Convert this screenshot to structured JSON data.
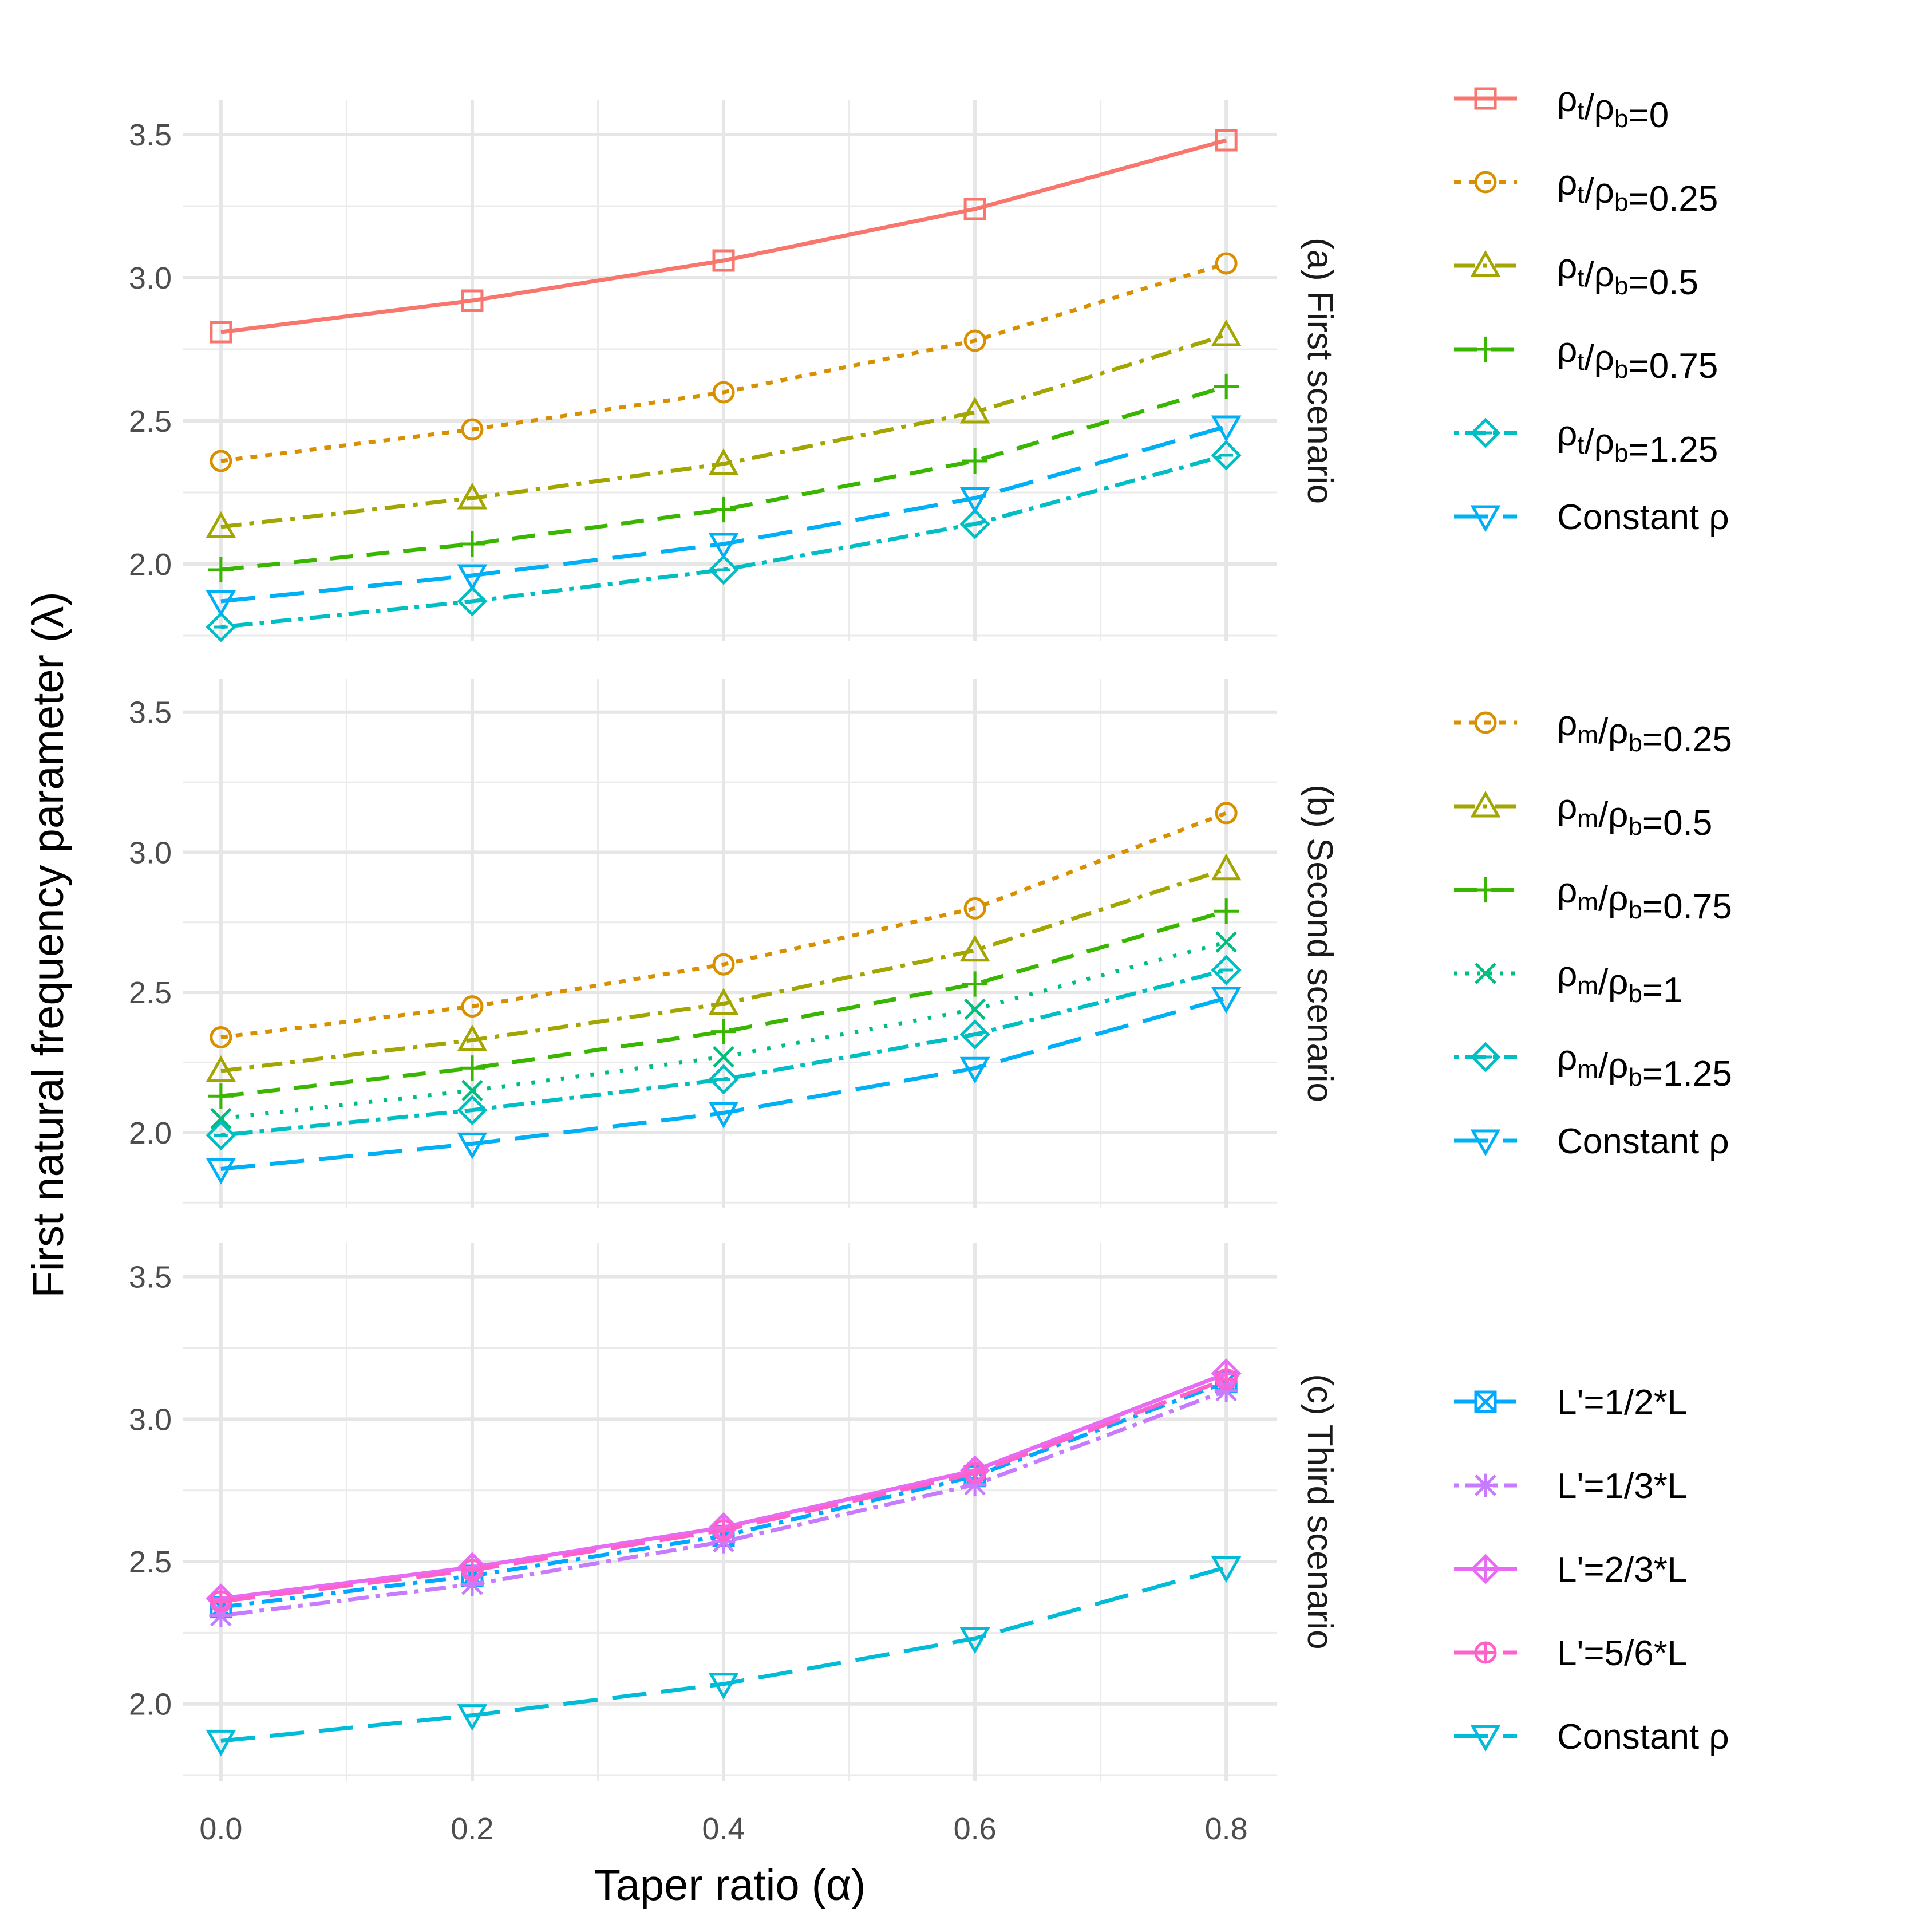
{
  "chart_data": {
    "type": "line",
    "xlabel": "Taper ratio (α)",
    "ylabel": "First natural frequency parameter (λ)",
    "x": [
      0.0,
      0.2,
      0.4,
      0.6,
      0.8
    ],
    "x_ticks": [
      "0.0",
      "0.2",
      "0.4",
      "0.6",
      "0.8"
    ],
    "xlim": [
      -0.03,
      0.84
    ],
    "ylim": [
      1.73,
      3.62
    ],
    "y_ticks": [
      "2.0",
      "2.5",
      "3.0",
      "3.5"
    ],
    "grid": true,
    "legend_position": "right",
    "panels": [
      {
        "strip": "(a) First scenario",
        "series": [
          {
            "name": "ρt/ρb=0",
            "label_base": "ρ",
            "label_sub1": "t",
            "label_mid": "/ρ",
            "label_sub2": "b",
            "label_tail": "=0",
            "color": "#F8766D",
            "dash": "solid",
            "marker": "square",
            "values": [
              2.81,
              2.92,
              3.06,
              3.24,
              3.48
            ]
          },
          {
            "name": "ρt/ρb=0.25",
            "label_base": "ρ",
            "label_sub1": "t",
            "label_mid": "/ρ",
            "label_sub2": "b",
            "label_tail": "=0.25",
            "color": "#D89000",
            "dash": "dotted",
            "marker": "circle",
            "values": [
              2.36,
              2.47,
              2.6,
              2.78,
              3.05
            ]
          },
          {
            "name": "ρt/ρb=0.5",
            "label_base": "ρ",
            "label_sub1": "t",
            "label_mid": "/ρ",
            "label_sub2": "b",
            "label_tail": "=0.5",
            "color": "#A3A500",
            "dash": "dotdash",
            "marker": "triangle",
            "values": [
              2.13,
              2.23,
              2.35,
              2.53,
              2.8
            ]
          },
          {
            "name": "ρt/ρb=0.75",
            "label_base": "ρ",
            "label_sub1": "t",
            "label_mid": "/ρ",
            "label_sub2": "b",
            "label_tail": "=0.75",
            "color": "#39B600",
            "dash": "dashed",
            "marker": "plus",
            "values": [
              1.98,
              2.07,
              2.19,
              2.36,
              2.62
            ]
          },
          {
            "name": "ρt/ρb=1.25",
            "label_base": "ρ",
            "label_sub1": "t",
            "label_mid": "/ρ",
            "label_sub2": "b",
            "label_tail": "=1.25",
            "color": "#00BFC4",
            "dash": "dotdash2",
            "marker": "diamond",
            "values": [
              1.78,
              1.87,
              1.98,
              2.14,
              2.38
            ]
          },
          {
            "name": "Constant ρ",
            "label_base": "Constant ρ",
            "color": "#00B0F6",
            "dash": "longdash",
            "marker": "triangle-down",
            "values": [
              1.87,
              1.96,
              2.07,
              2.23,
              2.48
            ]
          }
        ]
      },
      {
        "strip": "(b) Second scenario",
        "series": [
          {
            "name": "ρm/ρb=0.25",
            "label_base": "ρ",
            "label_sub1": "m",
            "label_mid": "/ρ",
            "label_sub2": "b",
            "label_tail": "=0.25",
            "color": "#D89000",
            "dash": "dotted",
            "marker": "circle",
            "values": [
              2.34,
              2.45,
              2.6,
              2.8,
              3.14
            ]
          },
          {
            "name": "ρm/ρb=0.5",
            "label_base": "ρ",
            "label_sub1": "m",
            "label_mid": "/ρ",
            "label_sub2": "b",
            "label_tail": "=0.5",
            "color": "#A3A500",
            "dash": "dotdash",
            "marker": "triangle",
            "values": [
              2.22,
              2.33,
              2.46,
              2.65,
              2.94
            ]
          },
          {
            "name": "ρm/ρb=0.75",
            "label_base": "ρ",
            "label_sub1": "m",
            "label_mid": "/ρ",
            "label_sub2": "b",
            "label_tail": "=0.75",
            "color": "#39B600",
            "dash": "dashed",
            "marker": "plus",
            "values": [
              2.13,
              2.23,
              2.36,
              2.53,
              2.79
            ]
          },
          {
            "name": "ρm/ρb=1",
            "label_base": "ρ",
            "label_sub1": "m",
            "label_mid": "/ρ",
            "label_sub2": "b",
            "label_tail": "=1",
            "color": "#00BF7D",
            "dash": "dotted-fine",
            "marker": "cross",
            "values": [
              2.05,
              2.15,
              2.27,
              2.44,
              2.68
            ]
          },
          {
            "name": "ρm/ρb=1.25",
            "label_base": "ρ",
            "label_sub1": "m",
            "label_mid": "/ρ",
            "label_sub2": "b",
            "label_tail": "=1.25",
            "color": "#00BFC4",
            "dash": "dotdash2",
            "marker": "diamond",
            "values": [
              1.99,
              2.08,
              2.19,
              2.35,
              2.58
            ]
          },
          {
            "name": "Constant ρ",
            "label_base": "Constant ρ",
            "color": "#00B0F6",
            "dash": "longdash",
            "marker": "triangle-down",
            "values": [
              1.87,
              1.96,
              2.07,
              2.23,
              2.48
            ]
          }
        ]
      },
      {
        "strip": "(c) Third scenario",
        "series": [
          {
            "name": "L'=1/2*L",
            "label_base": "L'=1/2*L",
            "color": "#00A9FF",
            "dash": "dotdash",
            "marker": "square-x",
            "values": [
              2.34,
              2.45,
              2.59,
              2.8,
              3.13
            ]
          },
          {
            "name": "L'=1/3*L",
            "label_base": "L'=1/3*L",
            "color": "#C77CFF",
            "dash": "dotdash2",
            "marker": "asterisk",
            "values": [
              2.31,
              2.42,
              2.57,
              2.77,
              3.1
            ]
          },
          {
            "name": "L'=2/3*L",
            "label_base": "L'=2/3*L",
            "color": "#E76BF3",
            "dash": "solid",
            "marker": "diamond-plus",
            "values": [
              2.37,
              2.48,
              2.62,
              2.82,
              3.16
            ]
          },
          {
            "name": "L'=5/6*L",
            "label_base": "L'=5/6*L",
            "color": "#FF61CC",
            "dash": "longdash",
            "marker": "circle-plus",
            "values": [
              2.36,
              2.47,
              2.61,
              2.81,
              3.14
            ]
          },
          {
            "name": "Constant ρ",
            "label_base": "Constant ρ",
            "color": "#00BCD8",
            "dash": "longdash",
            "marker": "triangle-down",
            "values": [
              1.87,
              1.96,
              2.07,
              2.23,
              2.48
            ]
          }
        ]
      }
    ]
  }
}
